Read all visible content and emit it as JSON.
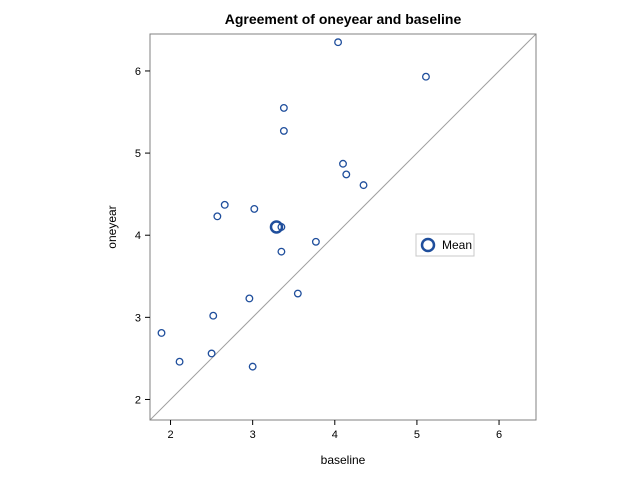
{
  "chart_data": {
    "type": "scatter",
    "title": "Agreement of oneyear and baseline",
    "xlabel": "baseline",
    "ylabel": "oneyear",
    "xlim": [
      1.75,
      6.45
    ],
    "ylim": [
      1.75,
      6.45
    ],
    "xticks": [
      2,
      3,
      4,
      5,
      6
    ],
    "yticks": [
      2,
      3,
      4,
      5,
      6
    ],
    "grid": false,
    "reference_line": "y = x",
    "legend_position": "right",
    "colors": {
      "points": "#1f4e9c",
      "reference_line": "#a0a0a0",
      "frame": "#808080"
    },
    "series": [
      {
        "points": [
          [
            1.89,
            2.81
          ],
          [
            2.11,
            2.46
          ],
          [
            2.5,
            2.56
          ],
          [
            2.52,
            3.02
          ],
          [
            2.57,
            4.23
          ],
          [
            2.66,
            4.37
          ],
          [
            2.96,
            3.23
          ],
          [
            3.0,
            2.4
          ],
          [
            3.02,
            4.32
          ],
          [
            3.35,
            4.1
          ],
          [
            3.35,
            3.8
          ],
          [
            3.38,
            5.55
          ],
          [
            3.38,
            5.27
          ],
          [
            3.55,
            3.29
          ],
          [
            3.77,
            3.92
          ],
          [
            4.04,
            6.35
          ],
          [
            4.1,
            4.87
          ],
          [
            4.14,
            4.74
          ],
          [
            4.35,
            4.61
          ],
          [
            5.11,
            5.93
          ]
        ]
      },
      {
        "name": "Mean",
        "points": [
          [
            3.29,
            4.1
          ]
        ]
      }
    ]
  }
}
